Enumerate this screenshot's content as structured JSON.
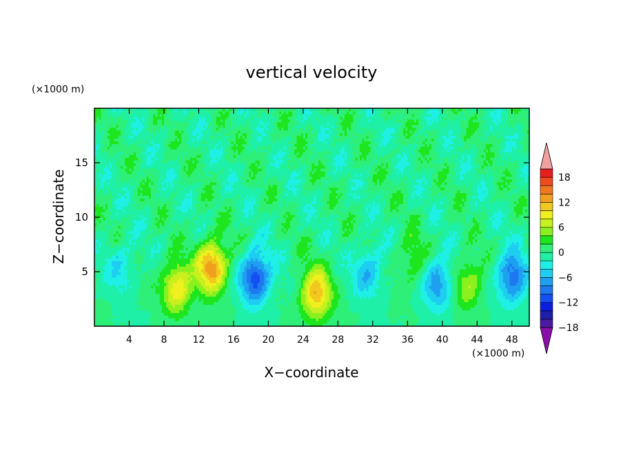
{
  "chart_data": {
    "type": "heatmap",
    "title": "vertical velocity",
    "xlabel": "X−coordinate",
    "ylabel": "Z−coordinate",
    "x_unit": "(×1000 m)",
    "y_unit": "(×1000 m)",
    "xlim": [
      0,
      50
    ],
    "ylim": [
      0,
      20
    ],
    "x_ticks": [
      4,
      8,
      12,
      16,
      20,
      24,
      28,
      32,
      36,
      40,
      44,
      48
    ],
    "y_ticks": [
      5,
      10,
      15
    ],
    "grid": false,
    "legend": "right",
    "colorbar": {
      "range": [
        -20,
        20
      ],
      "step": 2,
      "labels": [
        18,
        12,
        6,
        0,
        -6,
        -12,
        -18
      ],
      "colors": [
        "#8a0fa8",
        "#4a1aa0",
        "#1e1ea8",
        "#0a1ee0",
        "#1450f0",
        "#1e78f0",
        "#1ea0f0",
        "#1ecdf0",
        "#1ef0e6",
        "#1ef0a8",
        "#2ef078",
        "#1ee61e",
        "#8cf01e",
        "#c8f01e",
        "#f0f01e",
        "#f0c81e",
        "#f0a01e",
        "#f0781e",
        "#f04a1e",
        "#e61e1e",
        "#f0a0a0"
      ]
    },
    "features": [
      {
        "x": 3.0,
        "z": 5.5,
        "w": -4
      },
      {
        "x": 9.5,
        "z": 3.5,
        "w": 10
      },
      {
        "x": 13.5,
        "z": 5.5,
        "w": 14
      },
      {
        "x": 18.5,
        "z": 4.5,
        "w": -12
      },
      {
        "x": 25.5,
        "z": 3.0,
        "w": 12
      },
      {
        "x": 31.5,
        "z": 5.0,
        "w": -6
      },
      {
        "x": 36.5,
        "z": 6.0,
        "w": 4
      },
      {
        "x": 39.5,
        "z": 4.0,
        "w": -8
      },
      {
        "x": 43.0,
        "z": 4.0,
        "w": 6
      },
      {
        "x": 48.0,
        "z": 4.5,
        "w": -10
      }
    ]
  }
}
